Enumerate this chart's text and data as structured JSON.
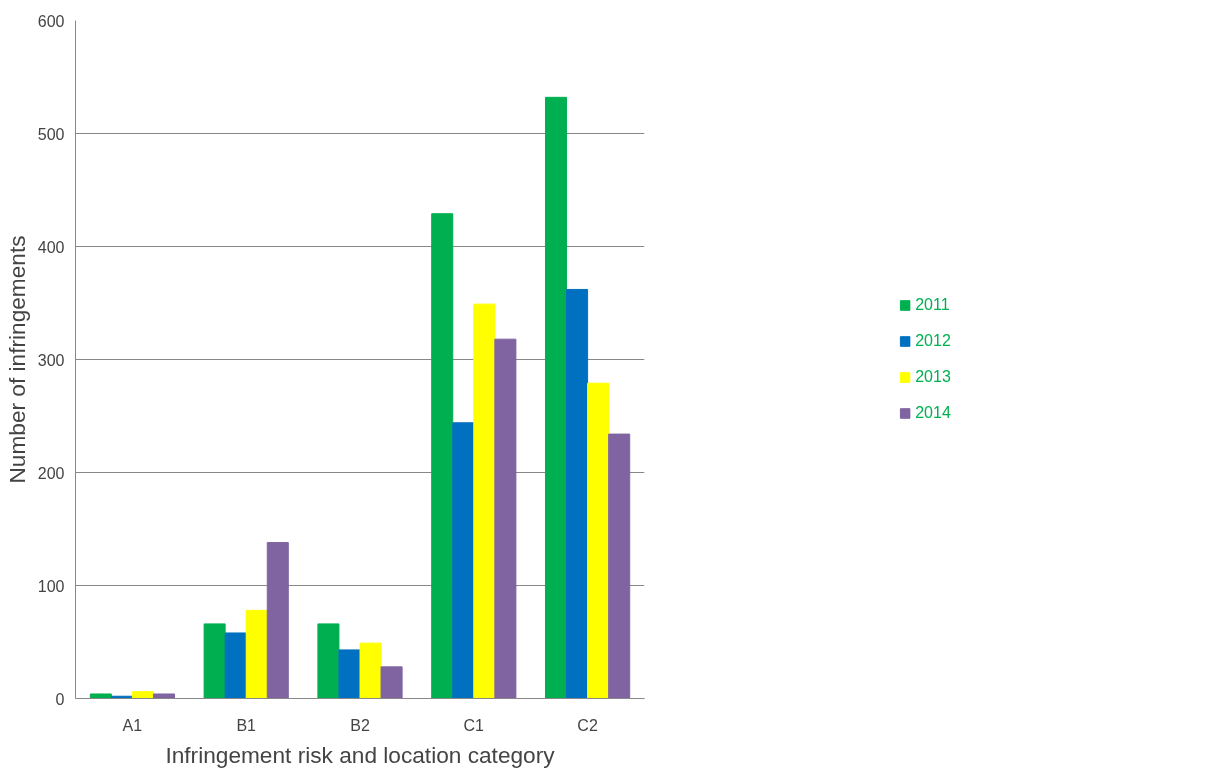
{
  "chart_data": {
    "type": "bar",
    "xlabel": "Infringement risk and location category",
    "ylabel": "Number of infringements",
    "categories": [
      "A1",
      "B1",
      "B2",
      "C1",
      "C2"
    ],
    "series": [
      {
        "name": "2011",
        "color": "#00b050",
        "values": [
          4,
          66,
          66,
          429,
          532
        ]
      },
      {
        "name": "2012",
        "color": "#0070c0",
        "values": [
          2,
          58,
          43,
          244,
          362
        ]
      },
      {
        "name": "2013",
        "color": "#ffff00",
        "values": [
          6,
          78,
          49,
          349,
          279
        ]
      },
      {
        "name": "2014",
        "color": "#8064a2",
        "values": [
          4,
          138,
          28,
          318,
          234
        ]
      }
    ],
    "ylim": [
      0,
      600
    ],
    "yticks": [
      0,
      100,
      200,
      300,
      400,
      500,
      600
    ],
    "grid": "y",
    "legend": "right"
  }
}
